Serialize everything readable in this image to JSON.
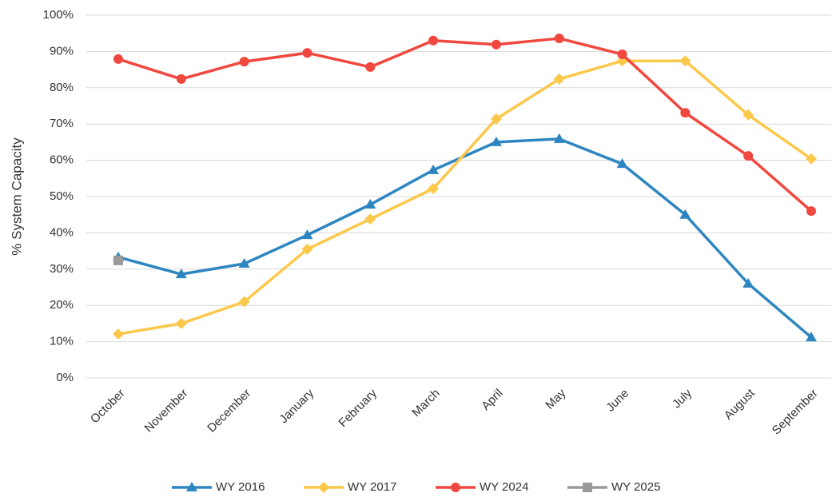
{
  "chart_data": {
    "type": "line",
    "y_label": "% System Capacity",
    "categories": [
      "October",
      "November",
      "December",
      "January",
      "February",
      "March",
      "April",
      "May",
      "June",
      "July",
      "August",
      "September"
    ],
    "series": [
      {
        "name": "WY 2016",
        "color": "#2e86c1",
        "marker": "triangle",
        "values": [
          33.3,
          28.6,
          31.5,
          39.4,
          47.8,
          57.3,
          65,
          65.9,
          59,
          45,
          26,
          11.2
        ]
      },
      {
        "name": "WY 2017",
        "color": "#fcc84a",
        "marker": "diamond",
        "values": [
          12.1,
          15,
          21,
          35.5,
          43.8,
          52.2,
          71.4,
          82.4,
          87.4,
          87.4,
          72.5,
          60.4
        ]
      },
      {
        "name": "WY 2024",
        "color": "#f0483e",
        "marker": "circle",
        "values": [
          87.9,
          82.4,
          87.2,
          89.6,
          85.7,
          93,
          91.9,
          93.6,
          89.2,
          73.1,
          61.2,
          46
        ]
      },
      {
        "name": "WY 2025",
        "color": "#9a9a9a",
        "marker": "square",
        "values": [
          32.4,
          null,
          null,
          null,
          null,
          null,
          null,
          null,
          null,
          null,
          null,
          null
        ]
      }
    ],
    "ylim": [
      0,
      100
    ],
    "yticks": [
      {
        "value": 0,
        "label": "0%"
      },
      {
        "value": 10,
        "label": "10%"
      },
      {
        "value": 20,
        "label": "20%"
      },
      {
        "value": 30,
        "label": "30%"
      },
      {
        "value": 40,
        "label": "40%"
      },
      {
        "value": 50,
        "label": "50%"
      },
      {
        "value": 60,
        "label": "60%"
      },
      {
        "value": 70,
        "label": "70%"
      },
      {
        "value": 80,
        "label": "80%"
      },
      {
        "value": 90,
        "label": "90%"
      },
      {
        "value": 100,
        "label": "100%"
      }
    ],
    "grid": true,
    "legend": "bottom"
  }
}
